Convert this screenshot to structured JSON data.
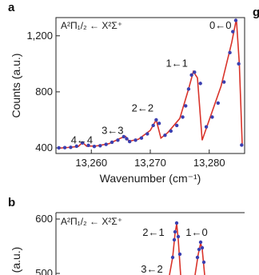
{
  "chart_data": [
    {
      "panel": "a",
      "type": "line",
      "title": "A²Π₁/₂ ← X²Σ⁺",
      "xlabel": "Wavenumber (cm⁻¹)",
      "ylabel": "Counts (a.u.)",
      "xlim": [
        13254,
        13286
      ],
      "ylim": [
        360,
        1330
      ],
      "xticks": [
        13260,
        13270,
        13280
      ],
      "xtick_labels": [
        "13,260",
        "13,270",
        "13,280"
      ],
      "yticks": [
        400,
        800,
        1200
      ],
      "ytick_labels": [
        "400",
        "800",
        "1,200"
      ],
      "grid": false,
      "series": [
        {
          "style": "points",
          "color": "#3b3fb0",
          "x": [
            13254.5,
            13255.5,
            13256.5,
            13257.5,
            13258.5,
            13259.5,
            13260.5,
            13261.5,
            13262.5,
            13263.5,
            13264.5,
            13265.5,
            13266.0,
            13266.5,
            13267.5,
            13268.5,
            13269.5,
            13270.5,
            13271.0,
            13271.5,
            13272.5,
            13273.5,
            13274.5,
            13275.5,
            13276.0,
            13276.5,
            13277.0,
            13277.5,
            13278.5,
            13279.5,
            13280.5,
            13281.5,
            13282.5,
            13283.5,
            13284.0,
            13284.5,
            13285.0,
            13285.5
          ],
          "y": [
            400,
            402,
            404,
            412,
            435,
            418,
            410,
            415,
            425,
            440,
            455,
            480,
            465,
            445,
            455,
            470,
            500,
            560,
            600,
            575,
            490,
            520,
            560,
            620,
            700,
            820,
            920,
            940,
            860,
            550,
            620,
            720,
            870,
            1080,
            1230,
            1310,
            1000,
            420
          ]
        },
        {
          "style": "line",
          "color": "#d9342b",
          "x": [
            13254.5,
            13256,
            13257.8,
            13258.5,
            13259.2,
            13261,
            13263,
            13265,
            13265.8,
            13266.4,
            13268,
            13270,
            13271,
            13271.8,
            13273,
            13275,
            13276.5,
            13277.3,
            13278,
            13278.8,
            13280,
            13282,
            13283.8,
            13284.6,
            13285.1,
            13285.6
          ],
          "y": [
            398,
            403,
            410,
            440,
            412,
            415,
            430,
            470,
            482,
            448,
            462,
            525,
            600,
            470,
            510,
            610,
            820,
            945,
            900,
            455,
            600,
            840,
            1150,
            1320,
            1000,
            410
          ]
        }
      ],
      "annotations": [
        "4←4",
        "3←3",
        "2←2",
        "1←1",
        "0←0"
      ]
    },
    {
      "panel": "b",
      "type": "line",
      "title": "A²Π₁/₂ ← X²Σ⁺",
      "ylabel": "(a.u.)",
      "yticks": [
        600,
        500
      ],
      "ytick_labels": [
        "600",
        "500"
      ],
      "annotations": [
        "2←1",
        "1←0",
        "3←2"
      ]
    }
  ]
}
